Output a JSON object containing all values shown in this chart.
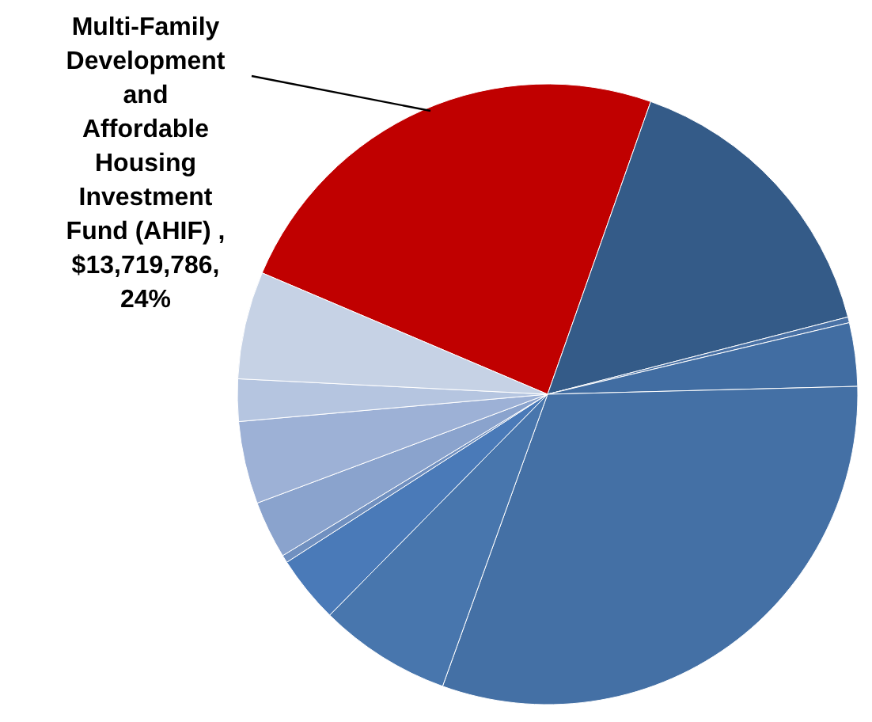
{
  "chart_data": {
    "type": "pie",
    "categories": [
      "Multi-Family Development and Affordable Housing Investment Fund (AHIF) , $13,719,786, 24%",
      null,
      null,
      null,
      null,
      null,
      null,
      null,
      null,
      null,
      null,
      null
    ],
    "values": [
      24,
      15.6,
      0.3,
      3.3,
      30.9,
      6.9,
      3.5,
      0.4,
      3,
      4.3,
      2.2,
      5.6
    ],
    "colors": [
      "#c00000",
      "#345b88",
      "#4a72a6",
      "#416da2",
      "#4470a5",
      "#4876ad",
      "#4a7ab8",
      "#7090c0",
      "#8aa3cd",
      "#9db1d6",
      "#b5c5e0",
      "#c6d2e5"
    ]
  }
}
